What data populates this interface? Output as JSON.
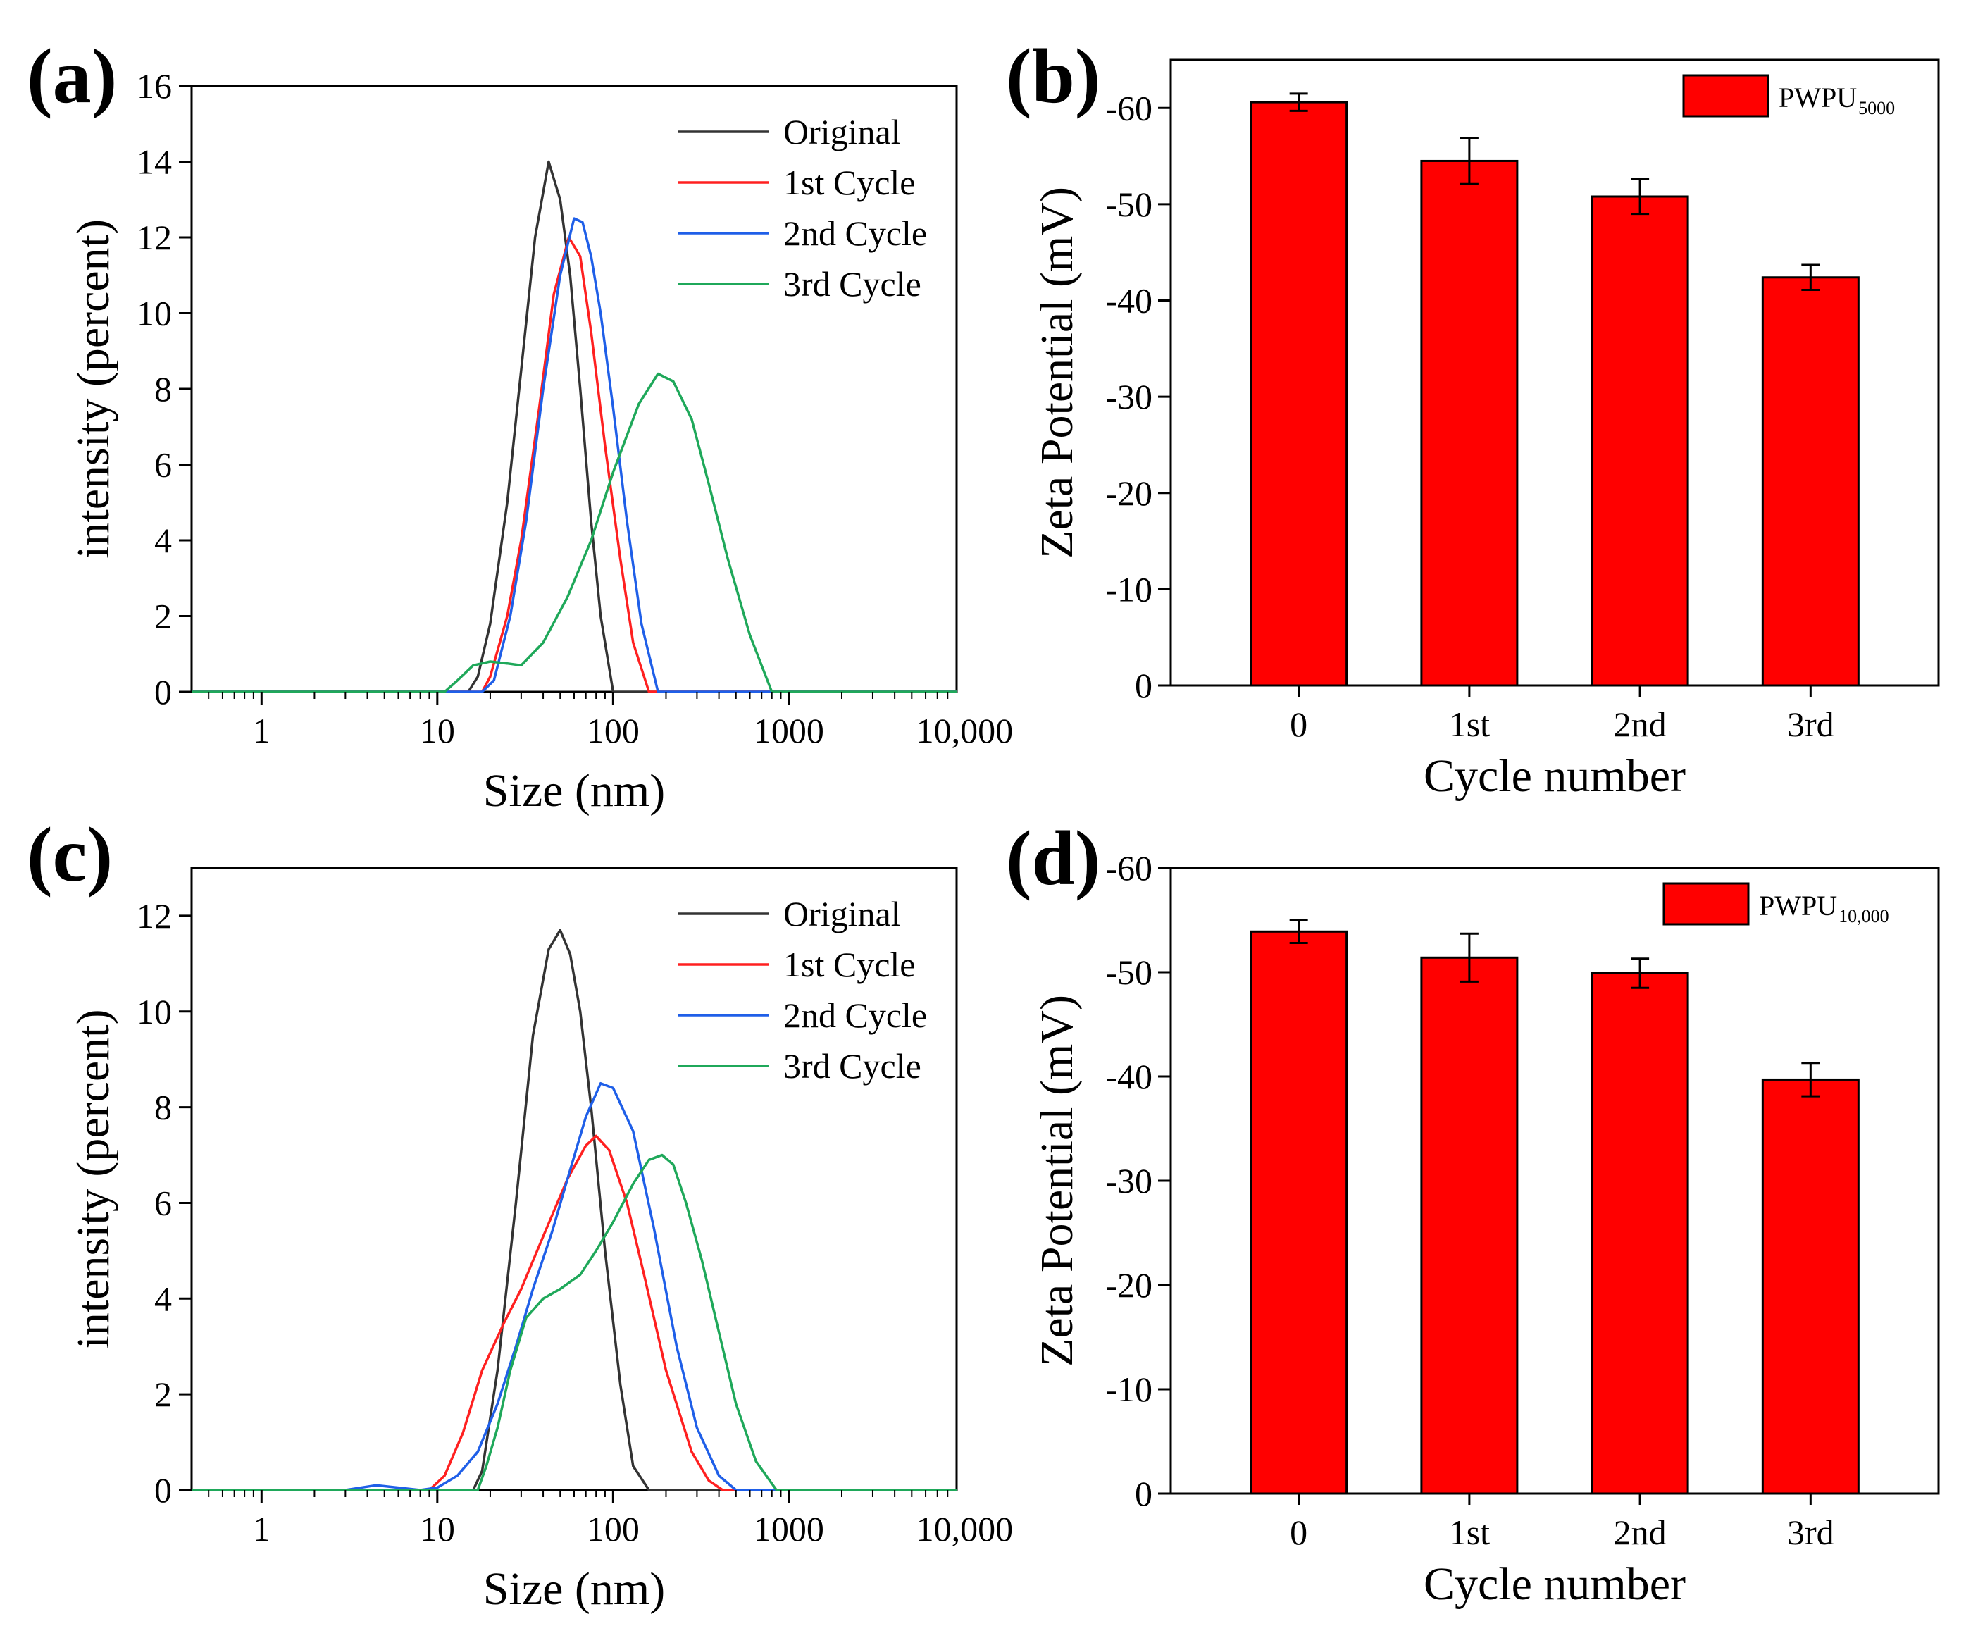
{
  "figure": {
    "panels": [
      "(a)",
      "(b)",
      "(c)",
      "(d)"
    ],
    "colors": {
      "original": "#333333",
      "cycle1": "#ff2020",
      "cycle2": "#1f5fe8",
      "cycle3": "#1fa85a",
      "bar": "#ff0000"
    }
  },
  "chart_data": [
    {
      "panel": "(a)",
      "type": "line",
      "xscale": "log",
      "xlabel": "Size (nm)",
      "ylabel": "intensity (percent)",
      "xlim": [
        0.4,
        9000
      ],
      "ylim": [
        0,
        16
      ],
      "xticks": [
        1,
        10,
        100,
        1000,
        10000
      ],
      "xtick_labels": [
        "1",
        "10",
        "100",
        "1000",
        "10,000"
      ],
      "yticks": [
        0,
        2,
        4,
        6,
        8,
        10,
        12,
        14,
        16
      ],
      "legend_position": "top-right",
      "series": [
        {
          "name": "Original",
          "color": "#333333",
          "x": [
            0.4,
            15,
            17,
            20,
            25,
            30,
            36,
            43,
            50,
            57,
            65,
            75,
            85,
            100,
            9000
          ],
          "y": [
            0,
            0,
            0.4,
            1.8,
            5.0,
            8.5,
            12.0,
            14.0,
            13.0,
            11.0,
            8.0,
            4.5,
            2.0,
            0,
            0
          ]
        },
        {
          "name": "1st Cycle",
          "color": "#ff2020",
          "x": [
            0.4,
            18,
            20,
            25,
            30,
            38,
            46,
            56,
            65,
            75,
            90,
            110,
            130,
            160,
            9000
          ],
          "y": [
            0,
            0,
            0.4,
            2.0,
            4.0,
            7.5,
            10.5,
            12.0,
            11.5,
            9.5,
            6.5,
            3.5,
            1.3,
            0,
            0
          ]
        },
        {
          "name": "2nd Cycle",
          "color": "#1f5fe8",
          "x": [
            0.4,
            18,
            21,
            26,
            32,
            40,
            50,
            60,
            67,
            75,
            85,
            100,
            120,
            145,
            180,
            9000
          ],
          "y": [
            0,
            0,
            0.3,
            2.0,
            4.5,
            8.0,
            11.0,
            12.5,
            12.4,
            11.5,
            10.0,
            7.5,
            4.5,
            1.8,
            0,
            0
          ]
        },
        {
          "name": "3rd Cycle",
          "color": "#1fa85a",
          "x": [
            0.4,
            11,
            13,
            16,
            20,
            25,
            30,
            40,
            55,
            75,
            100,
            140,
            180,
            220,
            280,
            350,
            450,
            600,
            800,
            9000
          ],
          "y": [
            0,
            0,
            0.3,
            0.7,
            0.8,
            0.75,
            0.7,
            1.3,
            2.5,
            4.0,
            5.8,
            7.6,
            8.4,
            8.2,
            7.2,
            5.5,
            3.5,
            1.5,
            0,
            0
          ]
        }
      ]
    },
    {
      "panel": "(b)",
      "type": "bar",
      "xlabel": "Cycle number",
      "ylabel": "Zeta Potential (mV)",
      "categories": [
        "0",
        "1st",
        "2nd",
        "3rd"
      ],
      "values": [
        -60.6,
        -54.5,
        -50.8,
        -42.4
      ],
      "errors": [
        0.9,
        2.4,
        1.8,
        1.3
      ],
      "ylim": [
        0,
        -65
      ],
      "yticks": [
        0,
        -10,
        -20,
        -30,
        -40,
        -50,
        -60
      ],
      "ytick_labels": [
        "0",
        "-10",
        "-20",
        "-30",
        "-40",
        "-50",
        "-60"
      ],
      "legend": {
        "name": "PWPU",
        "subscript": "5000"
      },
      "legend_position": "top-right"
    },
    {
      "panel": "(c)",
      "type": "line",
      "xscale": "log",
      "xlabel": "Size (nm)",
      "ylabel": "intensity (percent)",
      "xlim": [
        0.4,
        9000
      ],
      "ylim": [
        0,
        13
      ],
      "xticks": [
        1,
        10,
        100,
        1000,
        10000
      ],
      "xtick_labels": [
        "1",
        "10",
        "100",
        "1000",
        "10,000"
      ],
      "yticks": [
        0,
        2,
        4,
        6,
        8,
        10,
        12
      ],
      "legend_position": "top-right",
      "series": [
        {
          "name": "Original",
          "color": "#333333",
          "x": [
            0.4,
            16,
            18,
            22,
            28,
            35,
            43,
            50,
            57,
            65,
            75,
            90,
            110,
            130,
            160,
            9000
          ],
          "y": [
            0,
            0,
            0.4,
            2.5,
            6.0,
            9.5,
            11.3,
            11.7,
            11.2,
            10.0,
            8.0,
            5.0,
            2.2,
            0.5,
            0,
            0
          ]
        },
        {
          "name": "1st Cycle",
          "color": "#ff2020",
          "x": [
            0.4,
            9,
            11,
            14,
            18,
            24,
            30,
            40,
            55,
            70,
            80,
            95,
            120,
            150,
            200,
            280,
            350,
            420,
            9000
          ],
          "y": [
            0,
            0,
            0.3,
            1.2,
            2.5,
            3.5,
            4.2,
            5.3,
            6.5,
            7.2,
            7.4,
            7.1,
            6.0,
            4.5,
            2.5,
            0.8,
            0.2,
            0,
            0
          ]
        },
        {
          "name": "2nd Cycle",
          "color": "#1f5fe8",
          "x": [
            0.4,
            3,
            4.5,
            6,
            8,
            10,
            13,
            17,
            22,
            28,
            35,
            45,
            55,
            70,
            85,
            100,
            130,
            170,
            230,
            300,
            400,
            500,
            9000
          ],
          "y": [
            0,
            0,
            0.1,
            0.05,
            0,
            0.05,
            0.3,
            0.8,
            1.8,
            3.0,
            4.2,
            5.4,
            6.5,
            7.8,
            8.5,
            8.4,
            7.5,
            5.5,
            3.0,
            1.3,
            0.3,
            0,
            0
          ]
        },
        {
          "name": "3rd Cycle",
          "color": "#1fa85a",
          "x": [
            0.4,
            17,
            19,
            22,
            26,
            32,
            40,
            50,
            65,
            80,
            100,
            130,
            160,
            190,
            220,
            260,
            320,
            400,
            500,
            650,
            850,
            9000
          ],
          "y": [
            0,
            0,
            0.5,
            1.3,
            2.5,
            3.6,
            4.0,
            4.2,
            4.5,
            5.0,
            5.6,
            6.4,
            6.9,
            7.0,
            6.8,
            6.0,
            4.8,
            3.3,
            1.8,
            0.6,
            0,
            0
          ]
        }
      ]
    },
    {
      "panel": "(d)",
      "type": "bar",
      "xlabel": "Cycle number",
      "ylabel": "Zeta Potential (mV)",
      "categories": [
        "0",
        "1st",
        "2nd",
        "3rd"
      ],
      "values": [
        -53.9,
        -51.4,
        -49.9,
        -39.7
      ],
      "errors": [
        1.1,
        2.3,
        1.4,
        1.6
      ],
      "ylim": [
        0,
        -60
      ],
      "yticks": [
        0,
        -10,
        -20,
        -30,
        -40,
        -50,
        -60
      ],
      "ytick_labels": [
        "0",
        "-10",
        "-20",
        "-30",
        "-40",
        "-50",
        "-60"
      ],
      "legend": {
        "name": "PWPU",
        "subscript": "10,000"
      },
      "legend_position": "top-right"
    }
  ]
}
